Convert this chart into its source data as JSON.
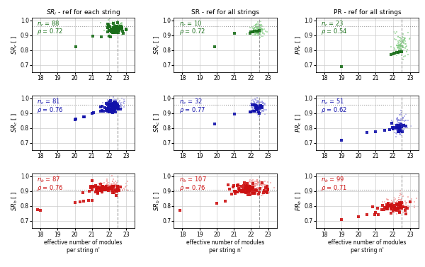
{
  "col_titles": [
    "$SR_i$ - ref for each string",
    "SR - ref for all strings",
    "PR - ref for all strings"
  ],
  "ylabels": [
    [
      "$SR_r$ [ ]",
      "$SR_r$ [ ]",
      "$PR_r$ [ ]"
    ],
    [
      "$SR_c$ [ ]",
      "$SR_c$ [ ]",
      "$PR_c$ [ ]"
    ],
    [
      "$SR_b$ [ ]",
      "$SR_b$ [ ]",
      "$PR_b$ [ ]"
    ]
  ],
  "xlabel": "effective number of modules\nper string n'",
  "annotations": [
    [
      {
        "n": "$n_r$ = 88",
        "rho": "$\\rho$ = 0.72"
      },
      {
        "n": "$n_r$ = 10",
        "rho": "$\\rho$ = 0.72"
      },
      {
        "n": "$n_r$ = 23",
        "rho": "$\\rho$ = 0.54"
      }
    ],
    [
      {
        "n": "$n_c$ = 81",
        "rho": "$\\rho$ = 0.76"
      },
      {
        "n": "$n_c$ = 32",
        "rho": "$\\rho$ = 0.77"
      },
      {
        "n": "$n_c$ = 51",
        "rho": "$\\rho$ = 0.62"
      }
    ],
    [
      {
        "n": "$n_b$ = 87",
        "rho": "$\\rho$ = 0.76"
      },
      {
        "n": "$n_b$ = 107",
        "rho": "$\\rho$ = 0.76"
      },
      {
        "n": "$n_b$ = 99",
        "rho": "$\\rho$ = 0.71"
      }
    ]
  ],
  "hlines_row": [
    0.96,
    0.955,
    0.91
  ],
  "vline": 22.5,
  "xlim": [
    17.5,
    23.5
  ],
  "ylim": [
    0.65,
    1.02
  ],
  "colors": {
    "row0_dark": "#1a6e1a",
    "row0_light": "#7dc97d",
    "row1_dark": "#1111aa",
    "row1_light": "#8888dd",
    "row2_dark": "#cc1111",
    "row2_light": "#ee8888"
  },
  "figsize": [
    6.0,
    3.77
  ],
  "dpi": 100
}
